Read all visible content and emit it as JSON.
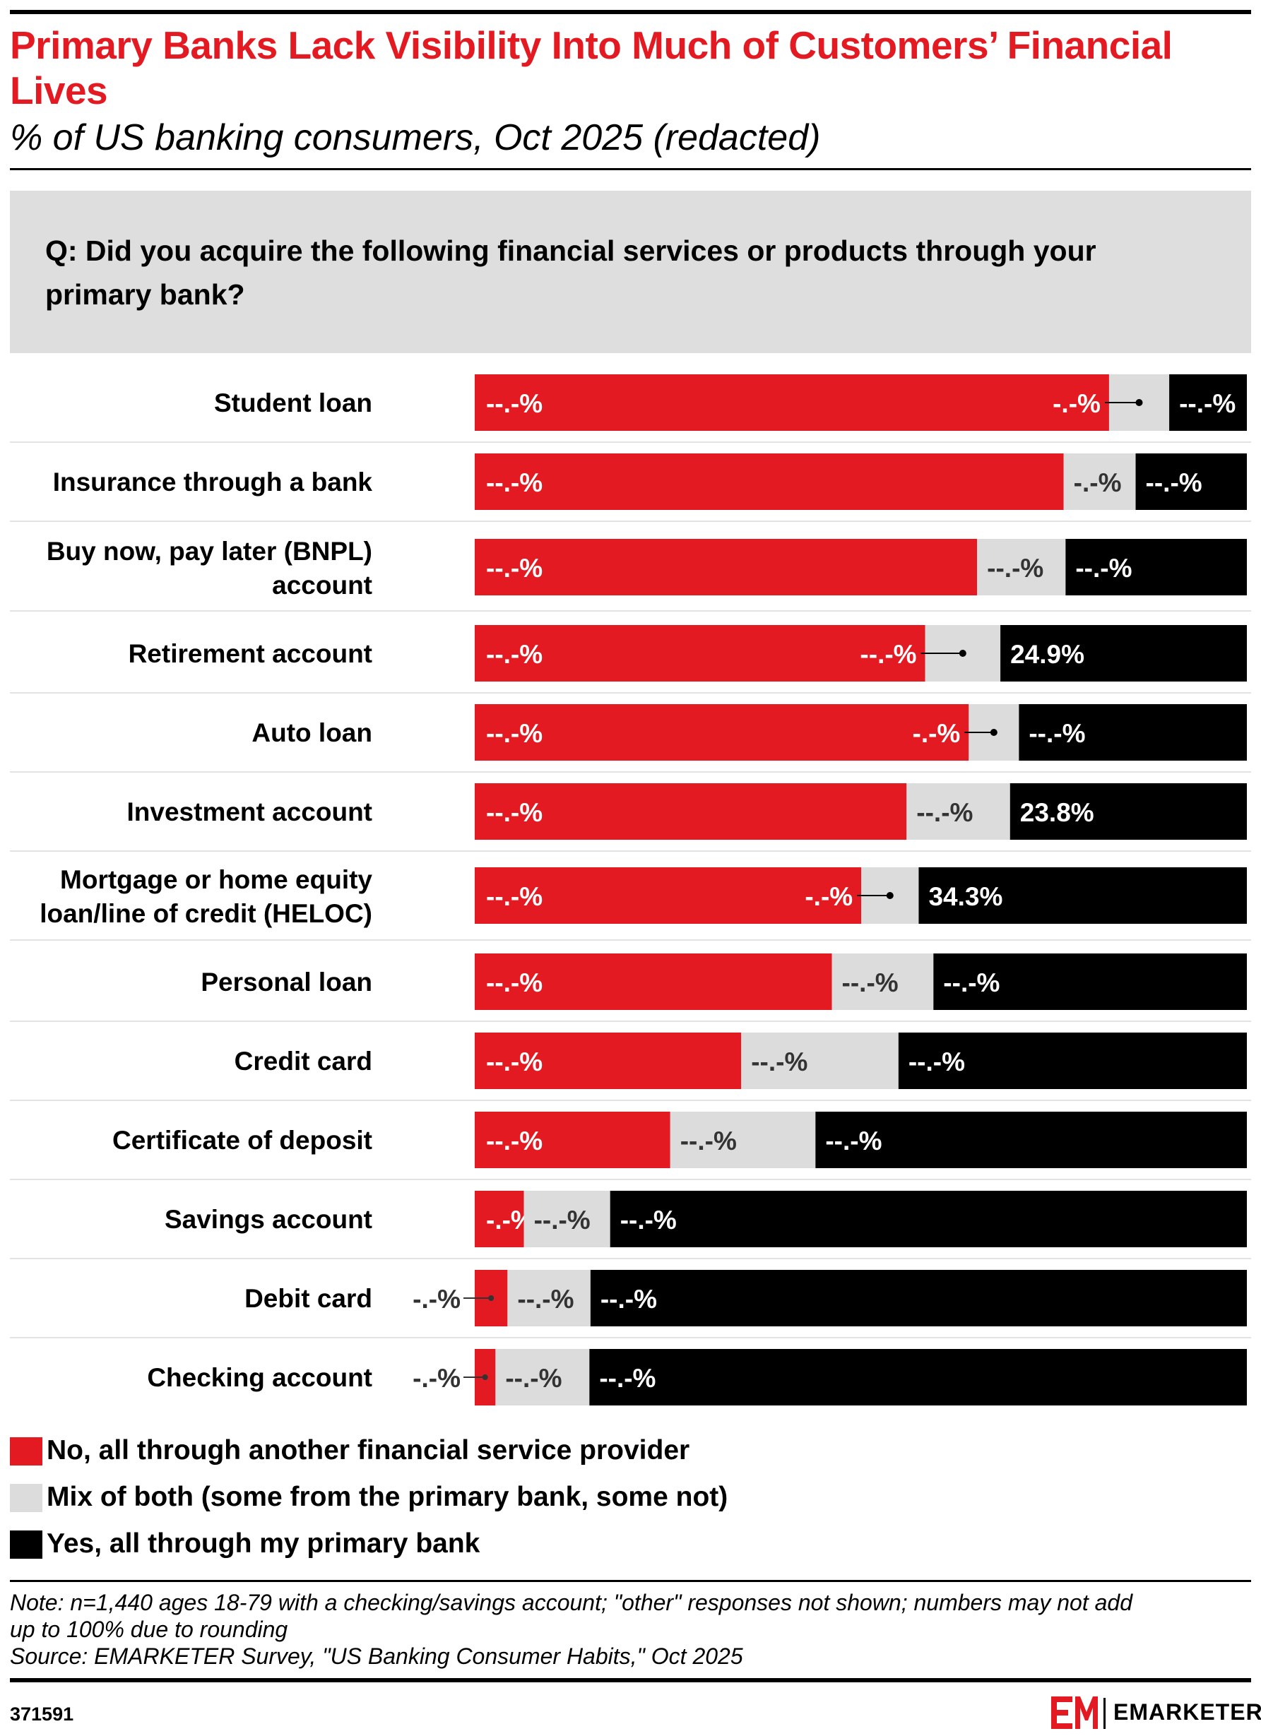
{
  "header": {
    "title": "Primary Banks Lack Visibility Into Much of Customers’ Financial Lives",
    "subtitle": "% of US banking consumers, Oct 2025 (redacted)",
    "question": "Q: Did you acquire the following financial services or products through your primary bank?"
  },
  "colors": {
    "red": "#e31a22",
    "gray": "#dcdcdc",
    "black": "#000000"
  },
  "chart_data": {
    "type": "bar",
    "orientation": "horizontal",
    "stacked": true,
    "categories": [
      "Student loan",
      "Insurance through a bank",
      "Buy now, pay later (BNPL) account",
      "Retirement account",
      "Auto loan",
      "Investment account",
      "Mortgage or home equity loan/line of credit (HELOC)",
      "Personal loan",
      "Credit card",
      "Certificate of deposit",
      "Savings account",
      "Debit card",
      "Checking account"
    ],
    "series": [
      {
        "name": "No, all through another financial service provider",
        "color": "#e31a22",
        "values": [
          58.0,
          54.0,
          46.0,
          45.5,
          45.3,
          43.4,
          40.4,
          32.7,
          24.4,
          17.9,
          4.5,
          3.0,
          1.9
        ],
        "labels": [
          "--.-%",
          "--.-%",
          "--.-%",
          "--.-%",
          "--.-%",
          "--.-%",
          "--.-%",
          "--.-%",
          "--.-%",
          "--.-%",
          "-.-%",
          "-.-%",
          "-.-%"
        ]
      },
      {
        "name": "Mix of both (some from the primary bank, some not)",
        "color": "#dcdcdc",
        "values": [
          5.5,
          6.6,
          8.1,
          7.6,
          4.6,
          10.4,
          6.0,
          9.3,
          14.4,
          13.3,
          7.9,
          7.6,
          8.6
        ],
        "labels": [
          "-.-%",
          "-.-%",
          "--.-%",
          "--.-%",
          "-.-%",
          "--.-%",
          "-.-%",
          "--.-%",
          "--.-%",
          "--.-%",
          "--.-%",
          "--.-%",
          "--.-%"
        ]
      },
      {
        "name": "Yes, all through my primary bank",
        "color": "#000000",
        "values": [
          7.1,
          10.2,
          16.6,
          24.9,
          20.9,
          23.8,
          34.3,
          28.7,
          31.9,
          39.5,
          58.3,
          60.1,
          60.2
        ],
        "labels": [
          "--.-%",
          "--.-%",
          "--.-%",
          "24.9%",
          "--.-%",
          "23.8%",
          "34.3%",
          "--.-%",
          "--.-%",
          "--.-%",
          "--.-%",
          "--.-%",
          "--.-%"
        ]
      }
    ],
    "legend_position": "bottom-left",
    "grid": false
  },
  "note": {
    "lines": [
      "Note: n=1,440 ages 18-79 with a checking/savings account; \"other\" responses not shown; numbers may not add",
      "up to 100% due to rounding",
      "Source: EMARKETER Survey, \"US Banking Consumer Habits,\" Oct 2025"
    ]
  },
  "footer": {
    "chart_id": "371591",
    "brand": "EMARKETER",
    "logo_mark": "EM"
  }
}
